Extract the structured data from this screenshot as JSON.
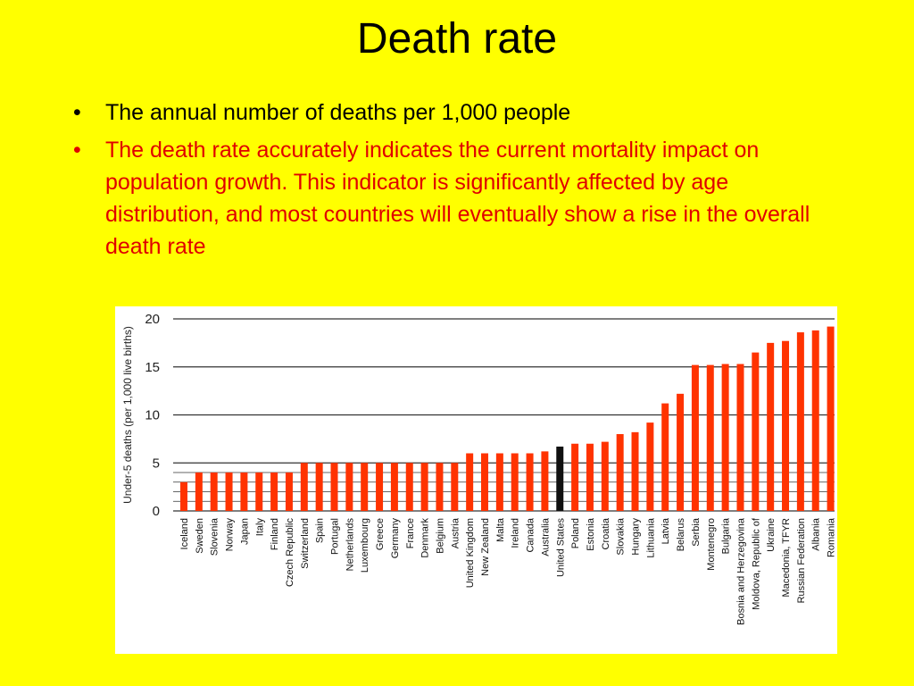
{
  "slide": {
    "title": "Death rate",
    "bullets": [
      "The annual number of deaths per 1,000 people",
      "The death rate accurately indicates the current mortality impact on population growth. This indicator is significantly affected by age distribution, and most countries will eventually show a rise in the overall death rate"
    ],
    "bullet_icon": "bullet-dot-icon"
  },
  "colors": {
    "background": "#FFFF00",
    "bar": "#FF3300",
    "highlight_bar": "#111111",
    "bullet_2_text": "#E00000"
  },
  "chart_data": {
    "type": "bar",
    "ylabel": "Under-5 deaths (per 1,000 live births)",
    "xlabel": "",
    "title": "",
    "ylim": [
      0,
      20
    ],
    "yticks": [
      0,
      5,
      10,
      15,
      20
    ],
    "grid": true,
    "highlight": "United States",
    "categories": [
      "Iceland",
      "Sweden",
      "Slovenia",
      "Norway",
      "Japan",
      "Italy",
      "Finland",
      "Czech Republic",
      "Switzerland",
      "Spain",
      "Portugal",
      "Netherlands",
      "Luxembourg",
      "Greece",
      "Germany",
      "France",
      "Denmark",
      "Belgium",
      "Austria",
      "United Kingdom",
      "New Zealand",
      "Malta",
      "Ireland",
      "Canada",
      "Australia",
      "United States",
      "Poland",
      "Estonia",
      "Croatia",
      "Slovakia",
      "Hungary",
      "Lithuania",
      "Latvia",
      "Belarus",
      "Serbia",
      "Montenegro",
      "Bulgaria",
      "Bosnia and Herzegovina",
      "Moldova, Republic of",
      "Ukraine",
      "Macedonia, TFYR",
      "Russian Federation",
      "Albania",
      "Romania"
    ],
    "values": [
      3,
      4,
      4,
      4,
      4,
      4,
      4,
      4,
      5,
      5,
      5,
      5,
      5,
      5,
      5,
      5,
      5,
      5,
      5,
      6,
      6,
      6,
      6,
      6,
      6.2,
      6.7,
      7,
      7,
      7.2,
      8,
      8.2,
      9.2,
      11.2,
      12.2,
      15.2,
      15.2,
      15.3,
      15.3,
      16.5,
      17.5,
      17.7,
      18.6,
      18.8,
      19.2
    ]
  }
}
